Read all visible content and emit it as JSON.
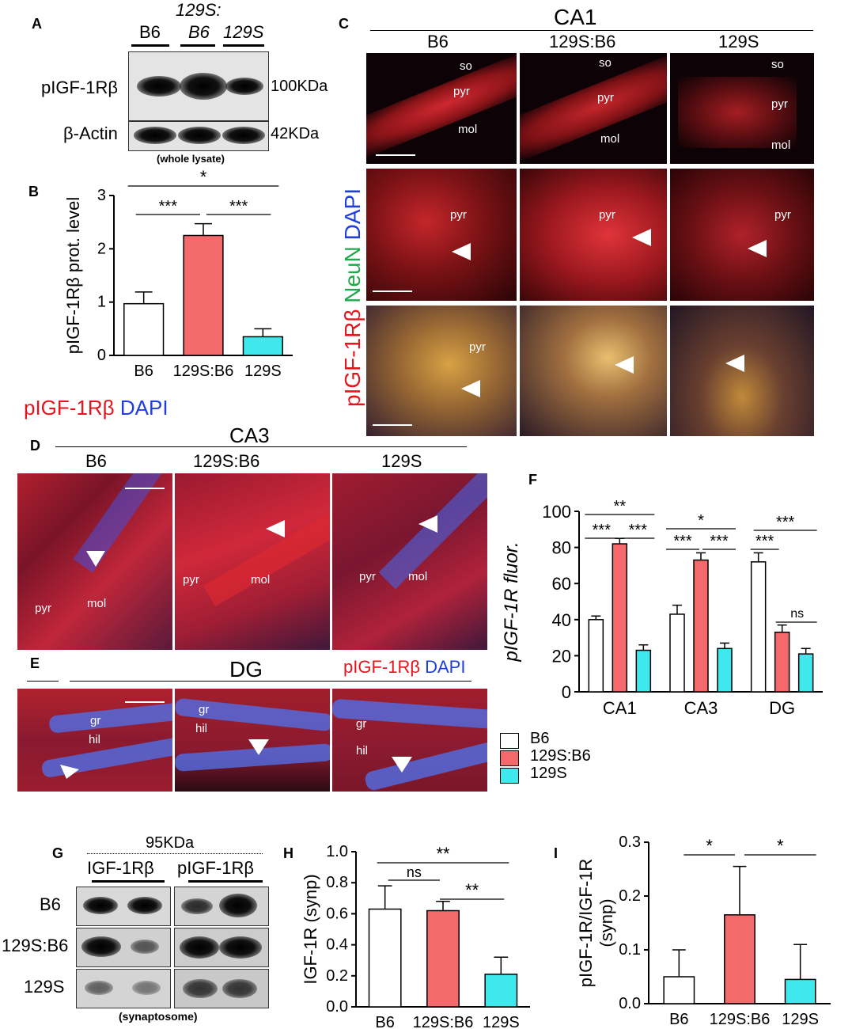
{
  "panels": {
    "A": "A",
    "B": "B",
    "C": "C",
    "D": "D",
    "E": "E",
    "F": "F",
    "G": "G",
    "H": "H",
    "I": "I"
  },
  "panelA": {
    "group_header": "129S:",
    "lanes": [
      "B6",
      "B6",
      "129S"
    ],
    "row1": "pIGF-1Rβ",
    "row2": "β-Actin",
    "mw1": "100KDa",
    "mw2": "42KDa",
    "caption": "(whole lysate)"
  },
  "panelC": {
    "title": "CA1",
    "cols": [
      "B6",
      "129S:B6",
      "129S"
    ],
    "side_label_parts": [
      "pIGF-1Rβ ",
      "NeuN ",
      "DAPI"
    ],
    "row1_labels": {
      "so": "so",
      "pyr": "pyr",
      "mol": "mol"
    },
    "pyr": "pyr"
  },
  "legendRed": {
    "part1": "pIGF-1Rβ ",
    "part2": "DAPI"
  },
  "panelD": {
    "title": "CA3",
    "cols": [
      "B6",
      "129S:B6",
      "129S"
    ],
    "pyr": "pyr",
    "mol": "mol"
  },
  "panelE": {
    "title": "DG",
    "gr": "gr",
    "hil": "hil",
    "legend1": "pIGF-1Rβ ",
    "legend2": "DAPI"
  },
  "panelG": {
    "mw": "95KDa",
    "col1": "IGF-1Rβ",
    "col2": "pIGF-1Rβ",
    "rows": [
      "B6",
      "129S:B6",
      "129S"
    ],
    "caption": "(synaptosome)"
  },
  "colors": {
    "b6": "#ffffff",
    "mix": "#f4696b",
    "s129": "#3fe8ec",
    "red": "#e8141c",
    "green": "#21a84a",
    "blue": "#1f3ee0"
  },
  "legendF": {
    "items": [
      "B6",
      "129S:B6",
      "129S"
    ]
  },
  "chart_data": [
    {
      "id": "B",
      "type": "bar",
      "ylabel": "pIGF-1Rβ prot. level",
      "categories": [
        "B6",
        "129S:B6",
        "129S"
      ],
      "values": [
        0.97,
        2.25,
        0.35
      ],
      "errors": [
        0.22,
        0.22,
        0.15
      ],
      "ylim": [
        0,
        3
      ],
      "yticks": [
        "0",
        "1",
        "2",
        "3"
      ],
      "significance": [
        "*",
        "***",
        "***"
      ]
    },
    {
      "id": "F",
      "type": "bar",
      "ylabel": "pIGF-1R fluor.",
      "categories": [
        "CA1",
        "CA3",
        "DG"
      ],
      "series": [
        {
          "name": "B6",
          "values": [
            40,
            43,
            72
          ],
          "errors": [
            2,
            5,
            5
          ]
        },
        {
          "name": "129S:B6",
          "values": [
            82,
            73,
            33
          ],
          "errors": [
            3,
            4,
            4
          ]
        },
        {
          "name": "129S",
          "values": [
            23,
            24,
            21
          ],
          "errors": [
            3,
            3,
            3
          ]
        }
      ],
      "ylim": [
        0,
        100
      ],
      "yticks": [
        "0",
        "20",
        "40",
        "60",
        "80",
        "100"
      ],
      "significance": [
        "**",
        "***",
        "***",
        "*",
        "***",
        "***",
        "***",
        "***",
        "ns"
      ]
    },
    {
      "id": "H",
      "type": "bar",
      "ylabel": "IGF-1R (synp)",
      "categories": [
        "B6",
        "129S:B6",
        "129S"
      ],
      "values": [
        0.63,
        0.62,
        0.21
      ],
      "errors": [
        0.15,
        0.06,
        0.11
      ],
      "ylim": [
        0,
        1
      ],
      "yticks": [
        "0.0",
        "0.2",
        "0.4",
        "0.6",
        "0.8",
        "1.0"
      ],
      "significance": [
        "**",
        "ns",
        "**"
      ]
    },
    {
      "id": "I",
      "type": "bar",
      "ylabel": "pIGF-1R/IGF-1R",
      "ylabel2": "(synp)",
      "categories": [
        "B6",
        "129S:B6",
        "129S"
      ],
      "values": [
        0.05,
        0.165,
        0.045
      ],
      "errors": [
        0.05,
        0.09,
        0.065
      ],
      "ylim": [
        0,
        0.3
      ],
      "yticks": [
        "0.0",
        "0.1",
        "0.2",
        "0.3"
      ],
      "significance": [
        "*",
        "*"
      ]
    }
  ]
}
